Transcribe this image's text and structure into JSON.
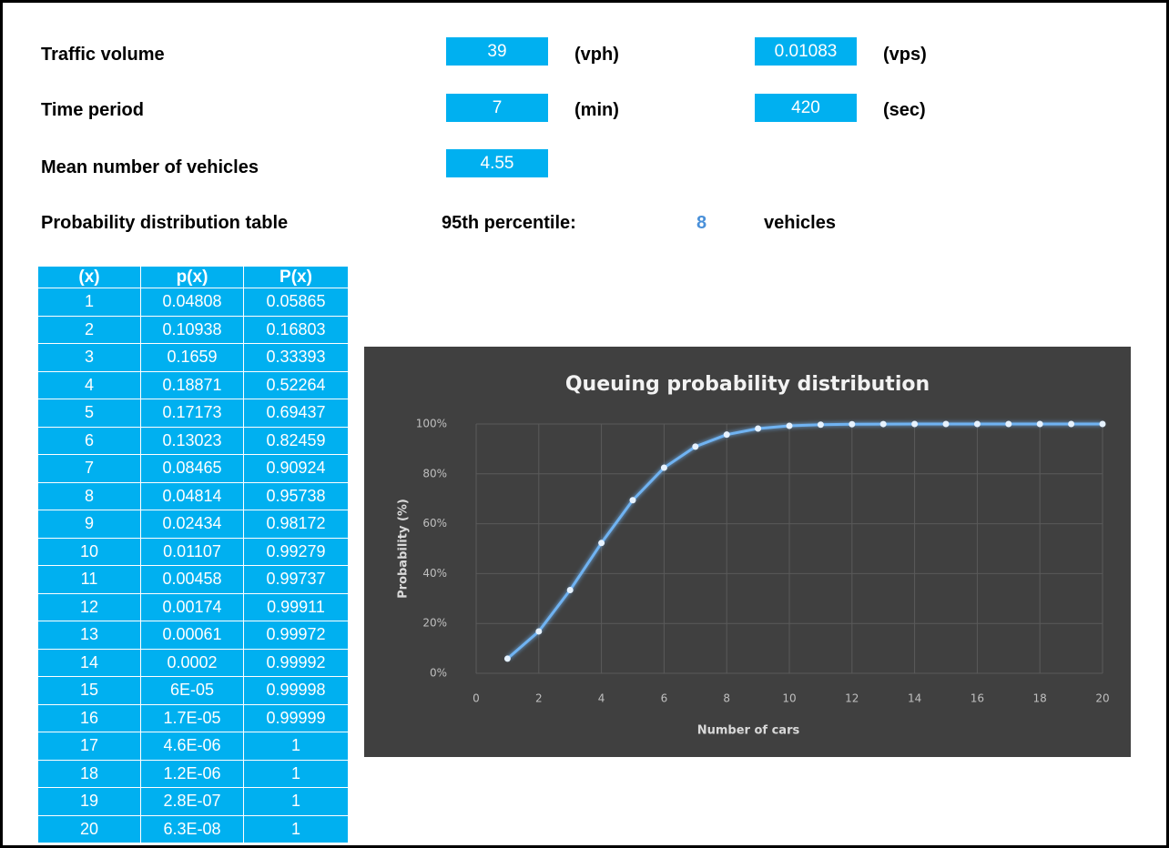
{
  "fields": {
    "traffic_volume": {
      "label": "Traffic volume",
      "value": "39",
      "unit": "(vph)",
      "value2": "0.01083",
      "unit2": "(vps)"
    },
    "time_period": {
      "label": "Time period",
      "value": "7",
      "unit": "(min)",
      "value2": "420",
      "unit2": "(sec)"
    },
    "mean": {
      "label": "Mean number of vehicles",
      "value": "4.55"
    },
    "distribution": {
      "label": "Probability distribution table",
      "percentile_label": "95th percentile:",
      "percentile_value": "8",
      "percentile_unit": "vehicles"
    }
  },
  "table": {
    "columns": [
      "(x)",
      "p(x)",
      "P(x)"
    ],
    "rows": [
      [
        "1",
        "0.04808",
        "0.05865"
      ],
      [
        "2",
        "0.10938",
        "0.16803"
      ],
      [
        "3",
        "0.1659",
        "0.33393"
      ],
      [
        "4",
        "0.18871",
        "0.52264"
      ],
      [
        "5",
        "0.17173",
        "0.69437"
      ],
      [
        "6",
        "0.13023",
        "0.82459"
      ],
      [
        "7",
        "0.08465",
        "0.90924"
      ],
      [
        "8",
        "0.04814",
        "0.95738"
      ],
      [
        "9",
        "0.02434",
        "0.98172"
      ],
      [
        "10",
        "0.01107",
        "0.99279"
      ],
      [
        "11",
        "0.00458",
        "0.99737"
      ],
      [
        "12",
        "0.00174",
        "0.99911"
      ],
      [
        "13",
        "0.00061",
        "0.99972"
      ],
      [
        "14",
        "0.0002",
        "0.99992"
      ],
      [
        "15",
        "6E-05",
        "0.99998"
      ],
      [
        "16",
        "1.7E-05",
        "0.99999"
      ],
      [
        "17",
        "4.6E-06",
        "1"
      ],
      [
        "18",
        "1.2E-06",
        "1"
      ],
      [
        "19",
        "2.8E-07",
        "1"
      ],
      [
        "20",
        "6.3E-08",
        "1"
      ]
    ]
  },
  "chart_data": {
    "type": "line",
    "title": "Queuing probability distribution",
    "x_label": "Number of cars",
    "y_label": "Probability (%)",
    "x": [
      1,
      2,
      3,
      4,
      5,
      6,
      7,
      8,
      9,
      10,
      11,
      12,
      13,
      14,
      15,
      16,
      17,
      18,
      19,
      20
    ],
    "series": [
      {
        "name": "P(x)",
        "color": "#6fb3f2",
        "values": [
          5.865,
          16.803,
          33.393,
          52.264,
          69.437,
          82.459,
          90.924,
          95.738,
          98.172,
          99.279,
          99.737,
          99.911,
          99.972,
          99.992,
          99.998,
          99.999,
          100,
          100,
          100,
          100
        ]
      }
    ],
    "xlim": [
      0,
      20
    ],
    "xticks": [
      0,
      2,
      4,
      6,
      8,
      10,
      12,
      14,
      16,
      18,
      20
    ],
    "ylim": [
      0,
      100
    ],
    "yticks": [
      {
        "value": 0,
        "label": "0%"
      },
      {
        "value": 20,
        "label": "20%"
      },
      {
        "value": 40,
        "label": "40%"
      },
      {
        "value": 60,
        "label": "60%"
      },
      {
        "value": 80,
        "label": "80%"
      },
      {
        "value": 100,
        "label": "100%"
      }
    ],
    "grid": true
  }
}
